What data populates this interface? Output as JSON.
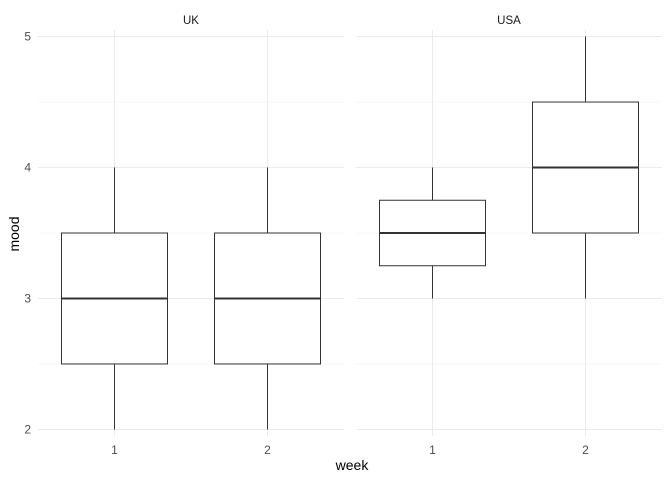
{
  "chart_data": {
    "type": "boxplot",
    "facets": [
      "UK",
      "USA"
    ],
    "categories": [
      "1",
      "2"
    ],
    "xlabel": "week",
    "ylabel": "mood",
    "ylim": [
      1.95,
      5.05
    ],
    "yticks": [
      2,
      3,
      4,
      5
    ],
    "grid": true,
    "boxes": [
      {
        "facet": "UK",
        "week": "1",
        "min": 2,
        "q1": 2.5,
        "median": 3,
        "q3": 3.5,
        "max": 4
      },
      {
        "facet": "UK",
        "week": "2",
        "min": 2,
        "q1": 2.5,
        "median": 3,
        "q3": 3.5,
        "max": 4
      },
      {
        "facet": "USA",
        "week": "1",
        "min": 3,
        "q1": 3.25,
        "median": 3.5,
        "q3": 3.75,
        "max": 4
      },
      {
        "facet": "USA",
        "week": "2",
        "min": 3,
        "q1": 3.5,
        "median": 4,
        "q3": 4.5,
        "max": 5
      }
    ]
  }
}
